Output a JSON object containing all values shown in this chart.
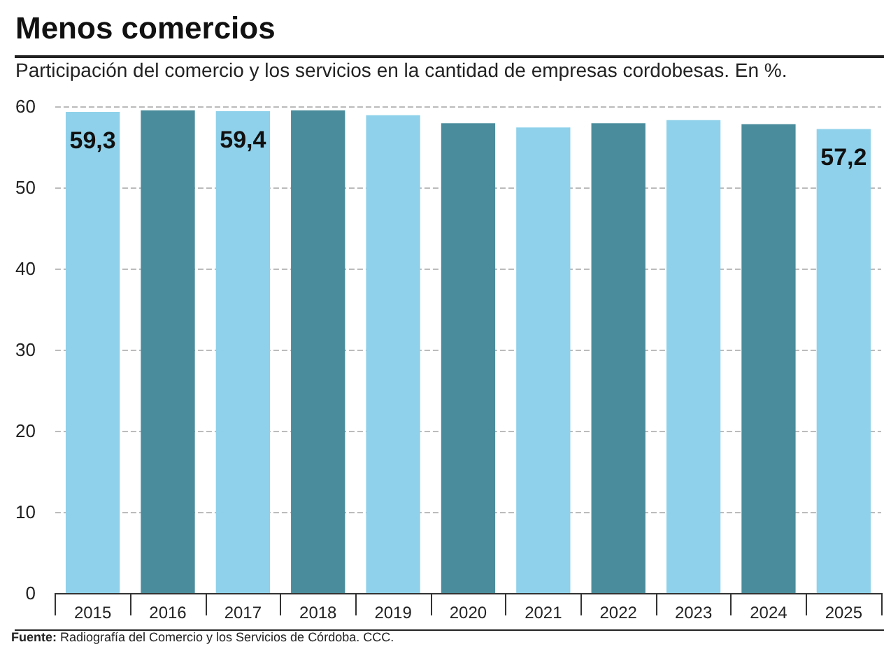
{
  "chart_data": {
    "type": "bar",
    "title": "Menos comercios",
    "subtitle": "Participación del comercio y los servicios en la cantidad de empresas cordobesas. En %.",
    "categories": [
      "2015",
      "2016",
      "2017",
      "2018",
      "2019",
      "2020",
      "2021",
      "2022",
      "2023",
      "2024",
      "2025"
    ],
    "values": [
      59.3,
      59.5,
      59.4,
      59.5,
      58.9,
      57.9,
      57.4,
      57.9,
      58.3,
      57.8,
      57.2
    ],
    "colors": [
      "#8fd1ea",
      "#4a8c9c",
      "#8fd1ea",
      "#4a8c9c",
      "#8fd1ea",
      "#4a8c9c",
      "#8fd1ea",
      "#4a8c9c",
      "#8fd1ea",
      "#4a8c9c",
      "#8fd1ea"
    ],
    "value_labels": [
      "59,3",
      null,
      "59,4",
      null,
      null,
      null,
      null,
      null,
      null,
      null,
      "57,2"
    ],
    "ylim": [
      0,
      60
    ],
    "yticks": [
      0,
      10,
      20,
      30,
      40,
      50,
      60
    ],
    "grid": "y",
    "annotations": [
      "Fuente: Radiografía del Comercio y los Servicios de Córdoba. CCC."
    ]
  }
}
